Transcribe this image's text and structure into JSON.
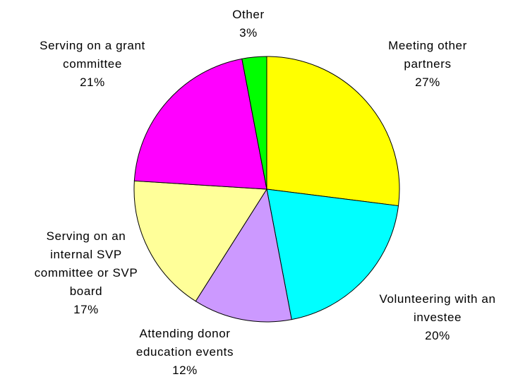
{
  "chart_data": {
    "type": "pie",
    "start_angle_deg": 0,
    "direction": "clockwise",
    "legend": "none",
    "slices": [
      {
        "lines": [
          "Meeting other",
          "partners"
        ],
        "value": 27,
        "value_label": "27%",
        "color": "#FFFF00"
      },
      {
        "lines": [
          "Volunteering with an",
          "investee"
        ],
        "value": 20,
        "value_label": "20%",
        "color": "#00FFFF"
      },
      {
        "lines": [
          "Attending donor",
          "education events"
        ],
        "value": 12,
        "value_label": "12%",
        "color": "#CC99FF"
      },
      {
        "lines": [
          "Serving on an",
          "internal SVP",
          "committee or SVP",
          "board"
        ],
        "value": 17,
        "value_label": "17%",
        "color": "#FFFF99"
      },
      {
        "lines": [
          "Serving on a grant",
          "committee"
        ],
        "value": 21,
        "value_label": "21%",
        "color": "#FF00FF"
      },
      {
        "lines": [
          "Other"
        ],
        "value": 3,
        "value_label": "3%",
        "color": "#00FF00"
      }
    ]
  }
}
